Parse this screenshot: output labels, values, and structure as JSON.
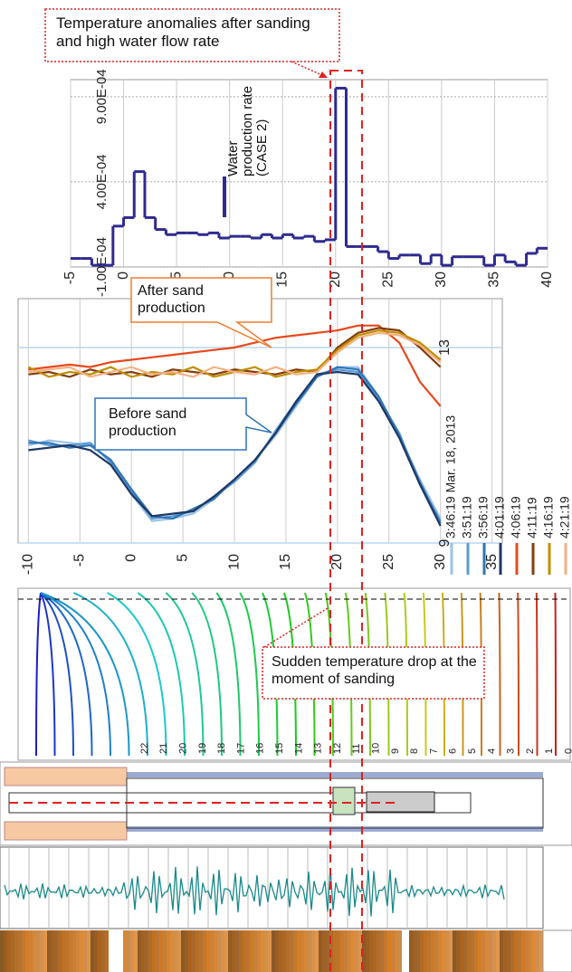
{
  "chart_data": [
    {
      "type": "step",
      "annotation": "Temperature anomalies after sanding and high water flow rate",
      "x": [
        -5,
        -4,
        -3,
        -2,
        -1,
        0,
        1,
        2,
        3,
        4,
        5,
        6,
        7,
        8,
        9,
        10,
        11,
        12,
        13,
        14,
        15,
        16,
        17,
        18,
        19,
        20,
        21,
        22,
        23,
        24,
        25,
        26,
        27,
        28,
        29,
        30,
        31,
        32,
        33,
        34,
        35,
        36,
        37,
        38,
        39,
        40
      ],
      "series": [
        {
          "name": "Water production rate (CASE 2)",
          "color": "#2e2a8f",
          "values": [
            -5e-05,
            -5e-05,
            -9e-05,
            -9e-05,
            0.00014,
            0.00019,
            0.00046,
            0.00019,
            0.00012,
            9e-05,
            0.0001,
            0.0001,
            9e-05,
            0.0001,
            7e-05,
            8e-05,
            8e-05,
            7e-05,
            9e-05,
            7e-05,
            9e-05,
            7e-05,
            8e-05,
            5e-05,
            6e-05,
            0.00095,
            2e-05,
            2e-05,
            2e-05,
            -1e-05,
            -5e-05,
            -3e-05,
            -3e-05,
            -8e-05,
            -3e-05,
            -9e-05,
            -4e-05,
            -4e-05,
            -4e-05,
            -9e-05,
            -3e-05,
            -7e-05,
            -9e-05,
            -2e-05,
            1e-05,
            1e-05
          ]
        }
      ],
      "xlim": [
        -5,
        40
      ],
      "xticks": [
        -5,
        0,
        5,
        10,
        15,
        20,
        25,
        30,
        35,
        40
      ],
      "ylim": [
        -0.0001,
        0.001
      ],
      "yticks": [
        {
          "value": -0.0001,
          "label": "-1.00E-04"
        },
        {
          "value": 0.0004,
          "label": "4.00E-04"
        },
        {
          "value": 0.0009,
          "label": "9.00E-04"
        }
      ],
      "grid": true
    },
    {
      "type": "line",
      "annotations": [
        "After sand production",
        "Before sand production"
      ],
      "x": [
        -10,
        -8,
        -6,
        -4,
        -2,
        0,
        2,
        4,
        6,
        8,
        10,
        12,
        14,
        16,
        18,
        20,
        22,
        24,
        26,
        28,
        30
      ],
      "series": [
        {
          "name": "3:46:19 Mar. 18, 2013",
          "color": "#9dc3e6",
          "values": [
            11.0,
            11.1,
            11.05,
            11.0,
            10.7,
            10.0,
            9.45,
            9.5,
            9.6,
            9.9,
            10.3,
            10.7,
            11.2,
            11.8,
            12.4,
            12.6,
            12.6,
            12.0,
            11.2,
            10.3,
            9.5
          ]
        },
        {
          "name": "3:51:19",
          "color": "#5b9bd5",
          "values": [
            11.1,
            11.0,
            11.0,
            11.05,
            10.65,
            10.05,
            9.5,
            9.55,
            9.65,
            9.95,
            10.25,
            10.65,
            11.3,
            11.9,
            12.45,
            12.55,
            12.5,
            11.95,
            11.25,
            10.2,
            9.45
          ]
        },
        {
          "name": "3:56:19",
          "color": "#2e75b6",
          "values": [
            11.05,
            11.05,
            10.95,
            11.0,
            10.7,
            10.1,
            9.55,
            9.5,
            9.7,
            9.9,
            10.3,
            10.7,
            11.25,
            11.85,
            12.4,
            12.6,
            12.55,
            12.0,
            11.2,
            10.25,
            9.4
          ]
        },
        {
          "name": "4:01:19",
          "color": "#1f3864",
          "values": [
            10.9,
            10.95,
            11.0,
            10.9,
            10.6,
            10.0,
            9.55,
            9.6,
            9.65,
            9.95,
            10.3,
            10.7,
            11.25,
            11.9,
            12.45,
            12.5,
            12.45,
            11.9,
            11.15,
            10.2,
            9.35
          ]
        },
        {
          "name": "4:06:19",
          "color": "#e8481c",
          "values": [
            12.55,
            12.6,
            12.65,
            12.6,
            12.7,
            12.75,
            12.8,
            12.85,
            12.9,
            12.95,
            13.0,
            13.1,
            13.2,
            13.25,
            13.3,
            13.35,
            13.45,
            13.45,
            13.1,
            12.3,
            11.8
          ]
        },
        {
          "name": "4:11:19",
          "color": "#843c0c",
          "values": [
            12.45,
            12.5,
            12.4,
            12.55,
            12.45,
            12.5,
            12.4,
            12.55,
            12.5,
            12.45,
            12.55,
            12.5,
            12.45,
            12.55,
            12.5,
            13.0,
            13.3,
            13.4,
            13.35,
            13.0,
            12.6
          ]
        },
        {
          "name": "4:16:19",
          "color": "#bf8f00",
          "values": [
            12.6,
            12.4,
            12.5,
            12.45,
            12.6,
            12.4,
            12.5,
            12.45,
            12.6,
            12.4,
            12.5,
            12.6,
            12.4,
            12.5,
            12.55,
            12.95,
            13.25,
            13.35,
            13.3,
            13.1,
            12.75
          ]
        },
        {
          "name": "4:21:19",
          "color": "#f4b183",
          "values": [
            12.5,
            12.55,
            12.6,
            12.4,
            12.5,
            12.6,
            12.45,
            12.5,
            12.4,
            12.6,
            12.5,
            12.45,
            12.6,
            12.45,
            12.5,
            12.9,
            13.2,
            13.3,
            13.25,
            13.05,
            12.7
          ]
        }
      ],
      "xlim": [
        -11,
        36
      ],
      "xticks": [
        -10,
        -5,
        0,
        5,
        10,
        15,
        20,
        25,
        30,
        35
      ],
      "ylim": [
        9,
        14
      ],
      "yticks": [
        9,
        13
      ],
      "grid": true
    }
  ],
  "annotations": [
    "Sudden temperature drop at the moment of sanding"
  ],
  "well_labels": [
    "22",
    "21",
    "20",
    "19",
    "18",
    "17",
    "16",
    "15",
    "14",
    "13",
    "12",
    "11",
    "10",
    "9",
    "8",
    "7",
    "6",
    "5",
    "4",
    "3",
    "2",
    "1",
    "0"
  ]
}
